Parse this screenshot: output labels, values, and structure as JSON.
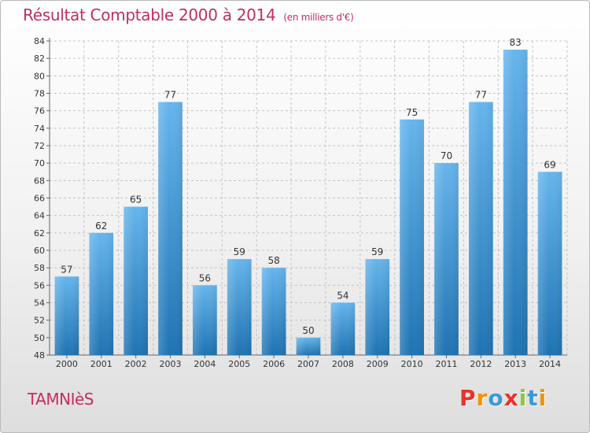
{
  "header": {
    "title": "Résultat Comptable 2000 à 2014",
    "unit": "(en milliers d'€)"
  },
  "footer": {
    "commune": "TAMNIèS",
    "logo_letters": [
      "P",
      "r",
      "o",
      "x",
      "i",
      "t",
      "i"
    ],
    "logo_colors": [
      "#e8332a",
      "#f39200",
      "#3a9ad9",
      "#e8332a",
      "#8cc63f",
      "#3a9ad9",
      "#f39200"
    ]
  },
  "colors": {
    "bar_top": "#66b5ec",
    "bar_bottom": "#1f73b2",
    "grid": "#c4c4c4",
    "title": "#c0305b"
  },
  "chart_data": {
    "type": "bar",
    "title": "Résultat Comptable 2000 à 2014",
    "subtitle": "(en milliers d'€)",
    "categories": [
      "2000",
      "2001",
      "2002",
      "2003",
      "2004",
      "2005",
      "2006",
      "2007",
      "2008",
      "2009",
      "2010",
      "2011",
      "2012",
      "2013",
      "2014"
    ],
    "values": [
      57,
      62,
      65,
      77,
      56,
      59,
      58,
      50,
      54,
      59,
      75,
      70,
      77,
      83,
      69
    ],
    "ylim": [
      48,
      84
    ],
    "ytick_step": 2,
    "grid": true,
    "xlabel": "",
    "ylabel": ""
  }
}
